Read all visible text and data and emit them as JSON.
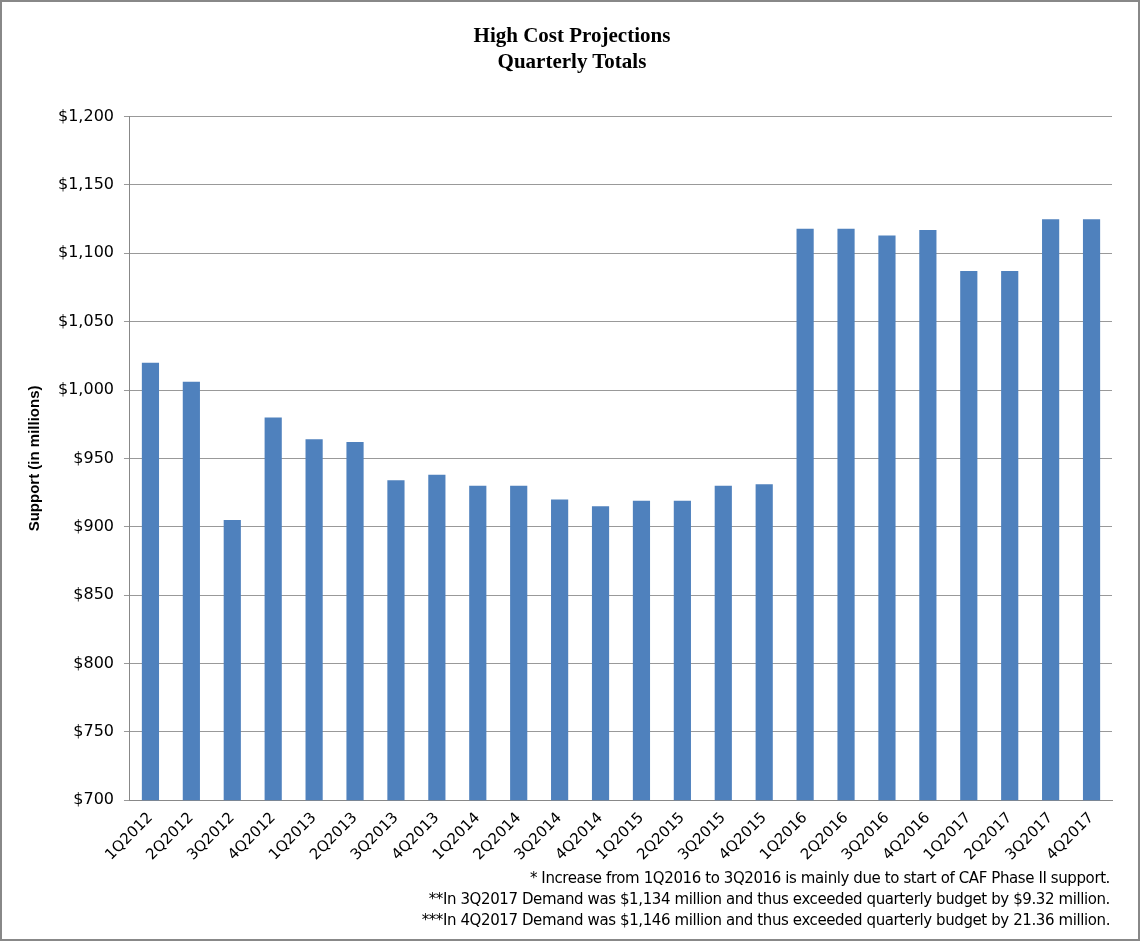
{
  "chart_data": {
    "type": "bar",
    "title": "High Cost Projections\nQuarterly Totals",
    "ylabel": "Support (in millions)",
    "categories": [
      "1Q2012",
      "2Q2012",
      "3Q2012",
      "4Q2012",
      "1Q2013",
      "2Q2013",
      "3Q2013",
      "4Q2013",
      "1Q2014",
      "2Q2014",
      "3Q2014",
      "4Q2014",
      "1Q2015",
      "2Q2015",
      "3Q2015",
      "4Q2015",
      "1Q2016",
      "2Q2016",
      "3Q2016",
      "4Q2016",
      "1Q2017",
      "2Q2017",
      "3Q2017",
      "4Q2017"
    ],
    "values": [
      1020,
      1006,
      905,
      980,
      964,
      962,
      934,
      938,
      930,
      930,
      920,
      915,
      919,
      919,
      930,
      931,
      1118,
      1118,
      1113,
      1117,
      1087,
      1087,
      1125,
      1125
    ],
    "color": "#4f81bd",
    "ylim": [
      700,
      1200
    ],
    "yticks": [
      {
        "value": 700,
        "label": "$700"
      },
      {
        "value": 750,
        "label": "$750"
      },
      {
        "value": 800,
        "label": "$800"
      },
      {
        "value": 850,
        "label": "$850"
      },
      {
        "value": 900,
        "label": "$900"
      },
      {
        "value": 950,
        "label": "$950"
      },
      {
        "value": 1000,
        "label": "$1,000"
      },
      {
        "value": 1050,
        "label": "$1,050"
      },
      {
        "value": 1100,
        "label": "$1,100"
      },
      {
        "value": 1150,
        "label": "$1,150"
      },
      {
        "value": 1200,
        "label": "$1,200"
      }
    ],
    "grid": "y",
    "legend": false,
    "annotations": [
      "*  Increase from 1Q2016 to 3Q2016 is mainly due to start of CAF Phase II support.",
      "**In 3Q2017 Demand  was $1,134 million and thus exceeded  quarterly budget by $9.32 million.",
      "***In 4Q2017 Demand was $1,146 million and thus exceeded quarterly budget by 21.36 million."
    ]
  }
}
